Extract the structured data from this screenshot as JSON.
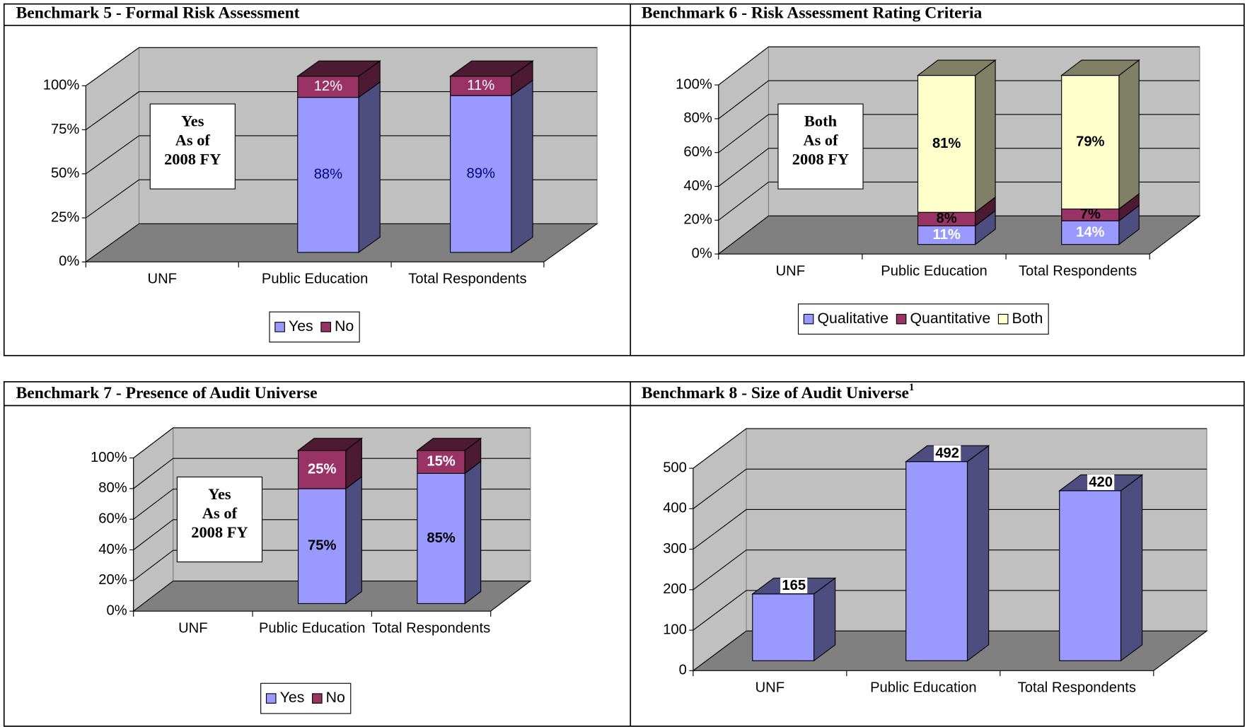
{
  "chart_data": [
    {
      "type": "bar",
      "title": "Benchmark 5 - Formal Risk Assessment",
      "categories": [
        "UNF",
        "Public Education",
        "Total Respondents"
      ],
      "series": [
        {
          "name": "Yes",
          "color": "#9999ff",
          "label_color": "#000080",
          "values": [
            null,
            88,
            89
          ],
          "value_labels": [
            null,
            "88%",
            "89%"
          ]
        },
        {
          "name": "No",
          "color": "#993366",
          "label_color": "#ffffff",
          "values": [
            null,
            12,
            11
          ],
          "value_labels": [
            null,
            "12%",
            "11%"
          ]
        }
      ],
      "ylim": [
        0,
        100
      ],
      "yticks": [
        {
          "value": 0,
          "label": "0%"
        },
        {
          "value": 25,
          "label": "25%"
        },
        {
          "value": 50,
          "label": "50%"
        },
        {
          "value": 75,
          "label": "75%"
        },
        {
          "value": 100,
          "label": "100%"
        }
      ],
      "annotation": [
        "Yes",
        "As of",
        "2008 FY"
      ],
      "grid": true,
      "legend": "bottom",
      "label_bold": false
    },
    {
      "type": "bar",
      "title": "Benchmark 6 - Risk Assessment Rating Criteria",
      "categories": [
        "UNF",
        "Public Education",
        "Total Respondents"
      ],
      "series": [
        {
          "name": "Qualitative",
          "color": "#9999ff",
          "label_color": "#ffffff",
          "values": [
            null,
            11,
            14
          ],
          "value_labels": [
            null,
            "11%",
            "14%"
          ]
        },
        {
          "name": "Quantitative",
          "color": "#993366",
          "label_color": "#000000",
          "values": [
            null,
            8,
            7
          ],
          "value_labels": [
            null,
            "8%",
            "7%"
          ]
        },
        {
          "name": "Both",
          "color": "#ffffcc",
          "label_color": "#000000",
          "values": [
            null,
            81,
            79
          ],
          "value_labels": [
            null,
            "81%",
            "79%"
          ]
        }
      ],
      "ylim": [
        0,
        100
      ],
      "yticks": [
        {
          "value": 0,
          "label": "0%"
        },
        {
          "value": 20,
          "label": "20%"
        },
        {
          "value": 40,
          "label": "40%"
        },
        {
          "value": 60,
          "label": "60%"
        },
        {
          "value": 80,
          "label": "80%"
        },
        {
          "value": 100,
          "label": "100%"
        }
      ],
      "annotation": [
        "Both",
        "As of",
        "2008 FY"
      ],
      "grid": true,
      "legend": "bottom",
      "label_bold": true
    },
    {
      "type": "bar",
      "title": "Benchmark 7 - Presence of Audit Universe",
      "categories": [
        "UNF",
        "Public Education",
        "Total Respondents"
      ],
      "series": [
        {
          "name": "Yes",
          "color": "#9999ff",
          "label_color": "#000000",
          "values": [
            null,
            75,
            85
          ],
          "value_labels": [
            null,
            "75%",
            "85%"
          ]
        },
        {
          "name": "No",
          "color": "#993366",
          "label_color": "#ffffff",
          "values": [
            null,
            25,
            15
          ],
          "value_labels": [
            null,
            "25%",
            "15%"
          ]
        }
      ],
      "ylim": [
        0,
        100
      ],
      "yticks": [
        {
          "value": 0,
          "label": "0%"
        },
        {
          "value": 20,
          "label": "20%"
        },
        {
          "value": 40,
          "label": "40%"
        },
        {
          "value": 60,
          "label": "60%"
        },
        {
          "value": 80,
          "label": "80%"
        },
        {
          "value": 100,
          "label": "100%"
        }
      ],
      "annotation": [
        "Yes",
        "As of",
        "2008 FY"
      ],
      "grid": true,
      "legend": "bottom",
      "label_bold": true
    },
    {
      "type": "bar",
      "title": "Benchmark 8 - Size of Audit Universe",
      "title_note": "1",
      "categories": [
        "UNF",
        "Public Education",
        "Total Respondents"
      ],
      "values": [
        165,
        492,
        420
      ],
      "color": "#9999ff",
      "ylim": [
        0,
        500
      ],
      "yticks": [
        0,
        100,
        200,
        300,
        400,
        500
      ],
      "grid": true,
      "label_bold": true
    }
  ]
}
